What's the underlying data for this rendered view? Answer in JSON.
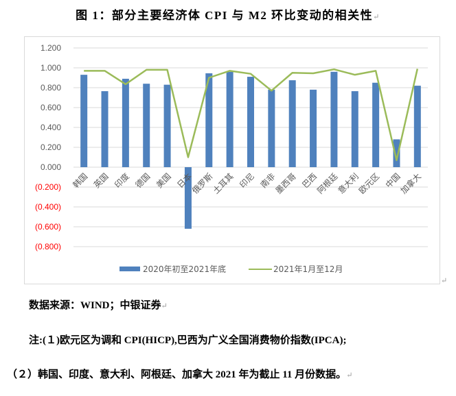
{
  "title": "图 1：部分主要经济体 CPI 与 M2 环比变动的相关性",
  "paragraph_mark": "↵",
  "colors": {
    "bar": "#4f81bd",
    "line": "#9bbb59",
    "grid": "#d9d9d9",
    "axis_label": "#595959",
    "negative_label": "#ff0000"
  },
  "chart_data": {
    "type": "bar",
    "title": "图 1：部分主要经济体 CPI 与 M2 环比变动的相关性",
    "xlabel": "",
    "ylabel": "",
    "ylim": [
      -0.8,
      1.2
    ],
    "yticks": [
      "1.200",
      "1.000",
      "0.800",
      "0.600",
      "0.400",
      "0.200",
      "0.000",
      "(0.200)",
      "(0.400)",
      "(0.600)",
      "(0.800)"
    ],
    "grid": true,
    "legend_position": "bottom",
    "categories": [
      "韩国",
      "英国",
      "印度",
      "德国",
      "美国",
      "日本",
      "俄罗斯",
      "土耳其",
      "印尼",
      "南非",
      "墨西哥",
      "巴西",
      "阿根廷",
      "意大利",
      "欧元区",
      "中国",
      "加拿大"
    ],
    "series": [
      {
        "name": "2020年初至2021年底",
        "type": "bar",
        "values": [
          0.93,
          0.765,
          0.89,
          0.84,
          0.83,
          -0.62,
          0.945,
          0.96,
          0.91,
          0.78,
          0.875,
          0.78,
          0.96,
          0.765,
          0.85,
          0.28,
          0.82
        ]
      },
      {
        "name": "2021年1月至12月",
        "type": "line",
        "values": [
          0.97,
          0.97,
          0.835,
          0.98,
          0.98,
          0.1,
          0.9,
          0.97,
          0.94,
          0.77,
          0.95,
          0.945,
          0.985,
          0.93,
          0.97,
          0.07,
          0.99
        ]
      }
    ]
  },
  "notes": {
    "source": "数据来源：WIND；中银证券",
    "note1": "注:(１)欧元区为调和 CPI(HICP),巴西为广义全国消费物价指数(IPCA);",
    "note2": "（２）韩国、印度、意大利、阿根廷、加拿大 2021 年为截止 11 月份数据。"
  }
}
